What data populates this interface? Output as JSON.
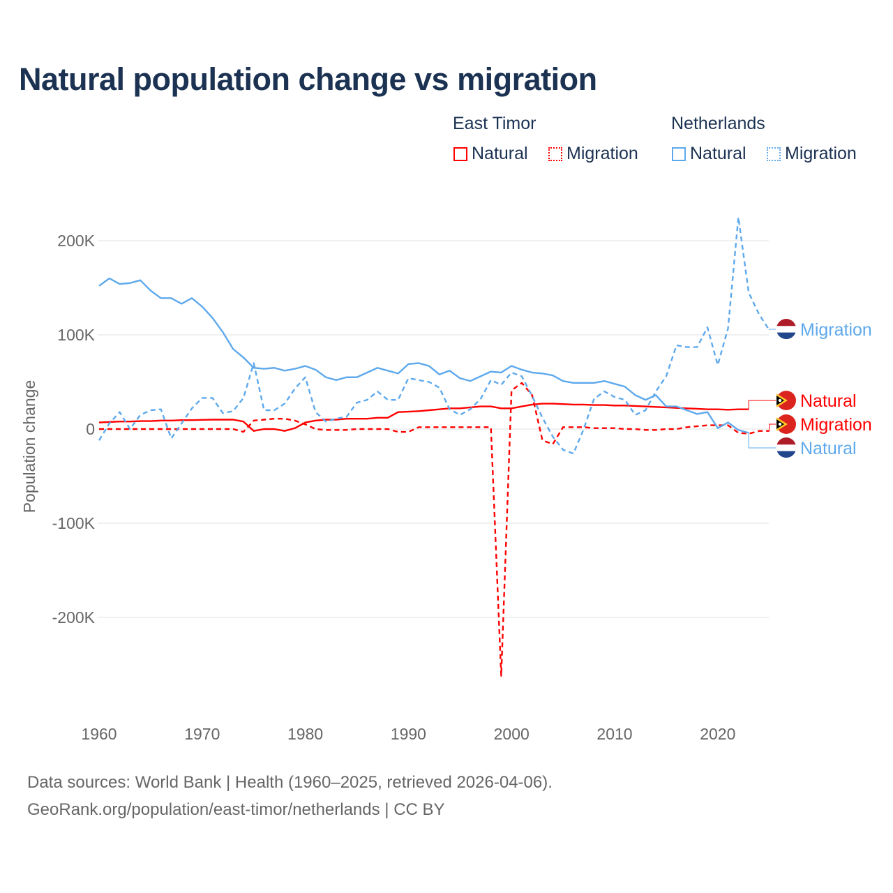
{
  "chart_data": {
    "type": "line",
    "title": "Natural population change vs migration",
    "xlabel": "",
    "ylabel": "Population change",
    "xlim": [
      1960,
      2025
    ],
    "ylim": [
      -290000,
      260000
    ],
    "x_ticks": [
      1960,
      1970,
      1980,
      1990,
      2000,
      2010,
      2020
    ],
    "x_tick_labels": [
      "1960",
      "1970",
      "1980",
      "1990",
      "2000",
      "2010",
      "2020"
    ],
    "y_ticks": [
      200000,
      100000,
      0,
      -100000,
      -200000
    ],
    "y_tick_labels": [
      "200K",
      "100K",
      "0",
      "-100K",
      "-200K"
    ],
    "grid": true,
    "legend": {
      "placement": "top-right",
      "groups": [
        {
          "name": "East Timor",
          "items": [
            "Natural",
            "Migration"
          ]
        },
        {
          "name": "Netherlands",
          "items": [
            "Natural",
            "Migration"
          ]
        }
      ]
    },
    "series": [
      {
        "name": "East Timor Natural",
        "country": "East Timor",
        "kind": "Natural",
        "label": "Natural",
        "color": "#ff0000",
        "dash": false,
        "start_year": 1960,
        "values": [
          7000,
          7500,
          8000,
          8000,
          8500,
          8500,
          9000,
          9000,
          9500,
          9500,
          9800,
          10000,
          10000,
          10000,
          8000,
          -2000,
          0,
          0,
          -2000,
          1000,
          7000,
          9000,
          10000,
          10000,
          11000,
          11000,
          11000,
          12000,
          12000,
          18000,
          18500,
          19000,
          20000,
          21000,
          22000,
          22000,
          23000,
          24000,
          24000,
          22000,
          22000,
          24000,
          26000,
          27000,
          27000,
          26500,
          26000,
          26000,
          25500,
          25500,
          25000,
          25000,
          24500,
          24000,
          23500,
          23000,
          22500,
          22000,
          21500,
          21000,
          21000,
          20500,
          21000,
          21000
        ]
      },
      {
        "name": "East Timor Migration",
        "country": "East Timor",
        "kind": "Migration",
        "label": "Migration",
        "color": "#ff0000",
        "dash": true,
        "start_year": 1960,
        "values": [
          0,
          0,
          0,
          0,
          0,
          0,
          0,
          0,
          0,
          0,
          0,
          0,
          0,
          0,
          -3000,
          9000,
          10000,
          11000,
          11000,
          9000,
          5000,
          0,
          -1000,
          -1000,
          -1000,
          0,
          0,
          0,
          0,
          -3000,
          -3000,
          2000,
          2000,
          2000,
          2000,
          2000,
          2000,
          2000,
          2000,
          -262000,
          41000,
          49000,
          36000,
          -12000,
          -16000,
          2000,
          2000,
          2000,
          1000,
          1000,
          1000,
          0,
          0,
          -1000,
          -1000,
          0,
          0,
          2000,
          3000,
          4000,
          4000,
          4000,
          -4000,
          -5000,
          -2000,
          -2000
        ]
      },
      {
        "name": "Netherlands Natural",
        "country": "Netherlands",
        "kind": "Natural",
        "label": "Natural",
        "color": "#5ea9ec",
        "dash": false,
        "start_year": 1960,
        "values": [
          152000,
          160000,
          154000,
          155000,
          158000,
          147000,
          139000,
          139000,
          133000,
          139000,
          130000,
          118000,
          103000,
          85000,
          76000,
          65000,
          64000,
          65000,
          62000,
          64000,
          67000,
          63000,
          55000,
          52000,
          55000,
          55000,
          60000,
          65000,
          62000,
          59000,
          69000,
          70000,
          67000,
          58000,
          62000,
          54000,
          51000,
          56000,
          61000,
          60000,
          67000,
          63000,
          60000,
          59000,
          57000,
          51000,
          49000,
          49000,
          49000,
          51000,
          48000,
          45000,
          36000,
          31000,
          36000,
          24000,
          24000,
          20000,
          16000,
          18000,
          1000,
          7000,
          -1000,
          -4000
        ]
      },
      {
        "name": "Netherlands Migration",
        "country": "Netherlands",
        "kind": "Migration",
        "label": "Migration",
        "color": "#5ea9ec",
        "dash": true,
        "start_year": 1960,
        "values": [
          -12000,
          6000,
          18000,
          0,
          15000,
          20000,
          21000,
          -10000,
          6000,
          22000,
          33000,
          33000,
          17000,
          19000,
          33000,
          70000,
          20000,
          20000,
          27000,
          43000,
          55000,
          18000,
          8000,
          11000,
          13000,
          28000,
          31000,
          40000,
          31000,
          31000,
          54000,
          52000,
          50000,
          44000,
          21000,
          15000,
          21000,
          32000,
          52000,
          47000,
          60000,
          56000,
          35000,
          12000,
          -8000,
          -22000,
          -26000,
          0,
          32000,
          40000,
          34000,
          31000,
          15000,
          20000,
          40000,
          56000,
          89000,
          87000,
          87000,
          108000,
          68000,
          107000,
          225000,
          145000,
          122000,
          105000
        ]
      }
    ]
  },
  "footer": {
    "line1": "Data sources: World Bank | Health (1960–2025, retrieved 2026-04-06).",
    "line2": "GeoRank.org/population/east-timor/netherlands | CC BY"
  }
}
